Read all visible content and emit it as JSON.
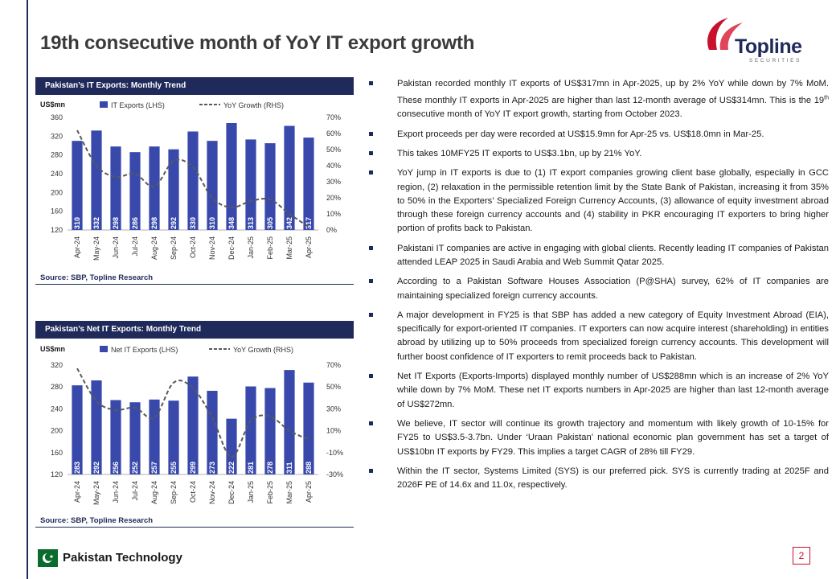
{
  "page": {
    "title": "19th consecutive month of YoY IT export growth",
    "logo_text": "Topline",
    "logo_subtext": "SECURITIES",
    "footer_title": "Pakistan Technology",
    "page_number": "2"
  },
  "colors": {
    "navy": "#1f2a5a",
    "bar": "#3949ab",
    "red": "#c8102e",
    "line": "#595959"
  },
  "chart1": {
    "header": "Pakistan’s IT Exports: Monthly Trend",
    "source": "Source: SBP, Topline Research"
  },
  "chart2": {
    "header": "Pakistan’s Net IT Exports: Monthly Trend",
    "source": "Source: SBP, Topline Research"
  },
  "chart_data": [
    {
      "type": "bar",
      "title": "Pakistan’s IT Exports: Monthly Trend",
      "ylabel": "US$mn",
      "categories": [
        "Apr-24",
        "May-24",
        "Jun-24",
        "Jul-24",
        "Aug-24",
        "Sep-24",
        "Oct-24",
        "Nov-24",
        "Dec-24",
        "Jan-25",
        "Feb-25",
        "Mar-25",
        "Apr-25"
      ],
      "series": [
        {
          "name": "IT Exports (LHS)",
          "type": "bar",
          "values": [
            310,
            332,
            298,
            286,
            298,
            292,
            330,
            310,
            348,
            313,
            305,
            342,
            317
          ]
        },
        {
          "name": "YoY Growth (RHS)",
          "type": "line",
          "axis": "right",
          "values": [
            62,
            40,
            33,
            35,
            27,
            43,
            39,
            20,
            14,
            18,
            19,
            10,
            2
          ]
        }
      ],
      "ylim": [
        120,
        360
      ],
      "yticks": [
        120,
        160,
        200,
        240,
        280,
        320,
        360
      ],
      "y2lim": [
        0,
        70
      ],
      "y2ticks": [
        "0%",
        "10%",
        "20%",
        "30%",
        "40%",
        "50%",
        "60%",
        "70%"
      ],
      "legend": "top"
    },
    {
      "type": "bar",
      "title": "Pakistan’s Net IT Exports: Monthly Trend",
      "ylabel": "US$mn",
      "categories": [
        "Apr-24",
        "May-24",
        "Jun-24",
        "Jul-24",
        "Aug-24",
        "Sep-24",
        "Oct-24",
        "Nov-24",
        "Dec-24",
        "Jan-25",
        "Feb-25",
        "Mar-25",
        "Apr-25"
      ],
      "series": [
        {
          "name": "Net IT Exports (LHS)",
          "type": "bar",
          "values": [
            283,
            292,
            256,
            252,
            257,
            255,
            299,
            273,
            222,
            281,
            278,
            311,
            288
          ]
        },
        {
          "name": "YoY Growth (RHS)",
          "type": "line",
          "axis": "right",
          "values": [
            67,
            37,
            29,
            31,
            22,
            54,
            49,
            22,
            -14,
            19,
            23,
            10,
            2
          ]
        }
      ],
      "ylim": [
        120,
        320
      ],
      "yticks": [
        120,
        160,
        200,
        240,
        280,
        320
      ],
      "y2lim": [
        -30,
        70
      ],
      "y2ticks": [
        "-30%",
        "-10%",
        "10%",
        "30%",
        "50%",
        "70%"
      ],
      "legend": "top"
    }
  ],
  "bullets": [
    "Pakistan recorded monthly IT exports of US$317mn in Apr-2025, up by 2% YoY while down by 7% MoM. These monthly IT exports in Apr-2025 are higher than last 12-month average of US$314mn. This is the 19th consecutive month of YoY IT export growth, starting from October 2023.",
    "Export proceeds per day were recorded at US$15.9mn for Apr-25 vs. US$18.0mn in Mar-25.",
    "This takes 10MFY25 IT exports to US$3.1bn, up by 21% YoY.",
    "YoY jump in IT exports is due to (1) IT export companies growing client base globally, especially in GCC region, (2) relaxation in the permissible retention limit by the State Bank of Pakistan, increasing it from 35% to 50% in the Exporters’ Specialized Foreign Currency Accounts, (3) allowance of equity investment abroad through these foreign currency accounts and (4) stability in PKR encouraging IT exporters to bring higher portion of profits back to Pakistan.",
    "Pakistani IT companies are active in engaging with global clients. Recently leading IT companies of Pakistan attended LEAP 2025 in Saudi Arabia and Web Summit Qatar 2025.",
    "According to a Pakistan Software Houses Association (P@SHA) survey, 62% of IT companies are maintaining specialized foreign currency accounts.",
    "A major development in FY25 is that SBP has added a new category of Equity Investment Abroad (EIA), specifically for export-oriented IT companies. IT exporters can now acquire interest (shareholding) in entities abroad by utilizing up to 50% proceeds from specialized foreign currency accounts. This development will further boost confidence of IT exporters to remit proceeds back to Pakistan.",
    "Net IT Exports (Exports-Imports) displayed monthly number of US$288mn which is an increase of 2% YoY while down by 7% MoM. These net IT exports numbers in Apr-2025 are higher than last 12-month average of US$272mn.",
    "We believe, IT sector will continue its growth trajectory and momentum with likely growth of 10-15% for FY25 to US$3.5-3.7bn. Under ‘Uraan Pakistan’ national economic plan government has set a target of US$10bn IT exports by FY29. This implies a target CAGR of 28% till FY29.",
    "Within the IT sector, Systems Limited (SYS) is our preferred pick. SYS is currently trading at 2025F and 2026F PE of 14.6x and 11.0x, respectively."
  ]
}
